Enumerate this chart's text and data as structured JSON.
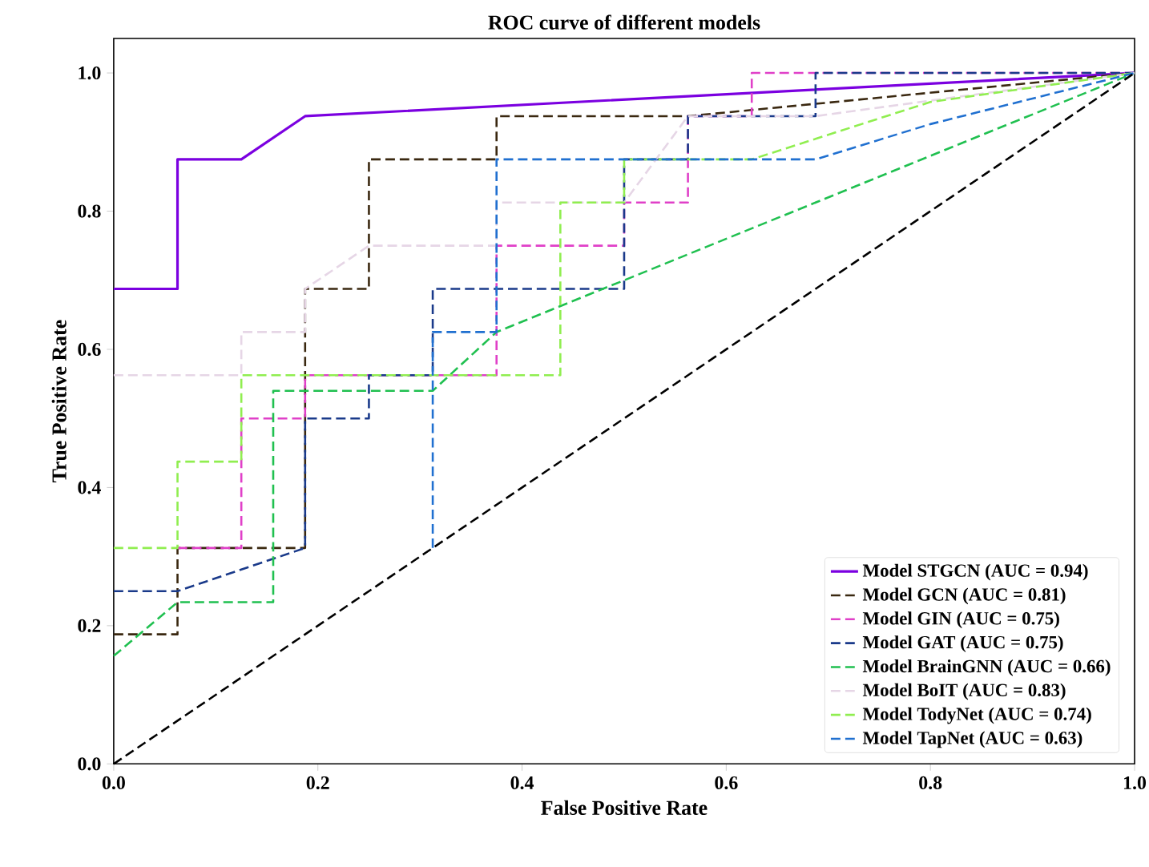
{
  "chart_data": {
    "type": "line",
    "title": "ROC curve of different models",
    "xlabel": "False Positive Rate",
    "ylabel": "True Positive Rate",
    "xlim": [
      0,
      1.0
    ],
    "ylim": [
      0,
      1.05
    ],
    "xticks": [
      {
        "value": 0,
        "label": "0.0"
      },
      0.2,
      0.4,
      0.6,
      0.8,
      {
        "value": 1,
        "label": "1.0"
      }
    ],
    "yticks": [
      {
        "value": 0,
        "label": "0.0"
      },
      0.2,
      0.4,
      0.6,
      0.8,
      {
        "value": 1,
        "label": "1.0"
      }
    ],
    "legend": "bottom right",
    "line_style": "dashed",
    "series": [
      {
        "name": "Model STGCN (AUC = 0.94)",
        "color": "#7b00e0",
        "line_style": "solid",
        "x": [
          0,
          0.0625,
          0.0625,
          0.125,
          0.1875,
          1
        ],
        "values": [
          0.6875,
          0.6875,
          0.875,
          0.875,
          0.9375,
          1
        ]
      },
      {
        "name": "Model GCN (AUC = 0.81)",
        "color": "#3a2810",
        "x": [
          0,
          0.0625,
          0.0625,
          0.1875,
          0.1875,
          0.25,
          0.25,
          0.375,
          0.375,
          0.5625,
          1
        ],
        "values": [
          0.1875,
          0.1875,
          0.3125,
          0.3125,
          0.6875,
          0.6875,
          0.875,
          0.875,
          0.9375,
          0.9375,
          1
        ]
      },
      {
        "name": "Model GIN (AUC = 0.75)",
        "color": "#e040c8",
        "x": [
          0.0625,
          0.125,
          0.125,
          0.1875,
          0.1875,
          0.375,
          0.375,
          0.5,
          0.5,
          0.5625,
          0.5625,
          0.625,
          0.625,
          1
        ],
        "values": [
          0.3125,
          0.3125,
          0.5,
          0.5,
          0.5625,
          0.5625,
          0.75,
          0.75,
          0.8125,
          0.8125,
          0.9375,
          0.9375,
          1,
          1
        ]
      },
      {
        "name": "Model GAT (AUC = 0.75)",
        "color": "#1a3a8a",
        "x": [
          0,
          0.0625,
          0.1875,
          0.1875,
          0.25,
          0.25,
          0.3125,
          0.3125,
          0.5,
          0.5,
          0.5625,
          0.5625,
          0.6875,
          0.6875,
          1
        ],
        "values": [
          0.25,
          0.25,
          0.3125,
          0.5,
          0.5,
          0.5625,
          0.5625,
          0.6875,
          0.6875,
          0.875,
          0.875,
          0.9375,
          0.9375,
          1,
          1
        ]
      },
      {
        "name": "Model BrainGNN (AUC = 0.66)",
        "color": "#20c050",
        "x": [
          0,
          0.0625,
          0.15625,
          0.15625,
          0.3125,
          0.375,
          1
        ],
        "values": [
          0.15625,
          0.234,
          0.234,
          0.54,
          0.54,
          0.625,
          1
        ]
      },
      {
        "name": "Model BoIT (AUC = 0.83)",
        "color": "#e6d6e6",
        "x": [
          0,
          0.125,
          0.125,
          0.1875,
          0.1875,
          0.25,
          0.375,
          0.375,
          0.5,
          0.5625,
          0.6875,
          1
        ],
        "values": [
          0.5625,
          0.5625,
          0.625,
          0.625,
          0.6875,
          0.75,
          0.75,
          0.8125,
          0.8125,
          0.9375,
          0.9375,
          1
        ]
      },
      {
        "name": "Model TodyNet (AUC = 0.74)",
        "color": "#90ee50",
        "x": [
          0,
          0.0625,
          0.0625,
          0.125,
          0.125,
          0.4375,
          0.4375,
          0.5,
          0.5,
          0.625,
          0.8,
          1
        ],
        "values": [
          0.3125,
          0.3125,
          0.4375,
          0.4375,
          0.5625,
          0.5625,
          0.8125,
          0.8125,
          0.875,
          0.875,
          0.958,
          1
        ]
      },
      {
        "name": "Model TapNet (AUC = 0.63)",
        "color": "#2070d0",
        "x": [
          0.3125,
          0.3125,
          0.375,
          0.375,
          0.6875,
          0.8,
          1
        ],
        "values": [
          0.3125,
          0.625,
          0.625,
          0.875,
          0.875,
          0.926,
          1
        ]
      },
      {
        "color": "#000000",
        "x": [
          0,
          1
        ],
        "values": [
          0,
          1
        ]
      }
    ]
  }
}
